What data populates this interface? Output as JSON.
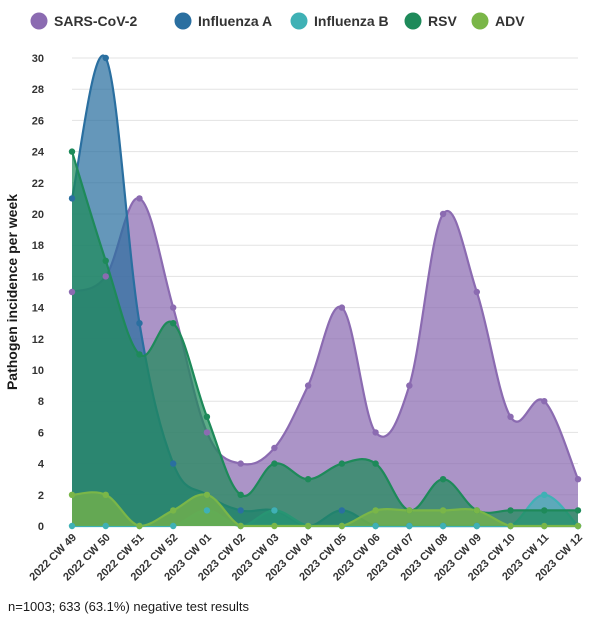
{
  "chart_data": {
    "type": "area",
    "ylabel": "Pathogen incidence per week",
    "ylim": [
      0,
      30
    ],
    "yticks": [
      0,
      2,
      4,
      6,
      8,
      10,
      12,
      14,
      16,
      18,
      20,
      22,
      24,
      26,
      28,
      30
    ],
    "grid": true,
    "legend_position": "top",
    "categories": [
      "2022 CW 49",
      "2022 CW 50",
      "2022 CW 51",
      "2022 CW 52",
      "2023 CW 01",
      "2023 CW 02",
      "2023 CW 03",
      "2023 CW 04",
      "2023 CW 05",
      "2023 CW 06",
      "2023 CW 07",
      "2023 CW 08",
      "2023 CW 09",
      "2023 CW 10",
      "2023 CW 11",
      "2023 CW 12"
    ],
    "series": [
      {
        "name": "SARS-CoV-2",
        "color": "#8b6bb1",
        "values": [
          15,
          16,
          21,
          14,
          6,
          4,
          5,
          9,
          14,
          6,
          9,
          20,
          15,
          7,
          8,
          3
        ]
      },
      {
        "name": "Influenza A",
        "color": "#2a6fa0",
        "values": [
          21,
          30,
          13,
          4,
          2,
          1,
          1,
          0,
          1,
          0,
          0,
          0,
          0,
          0,
          0,
          0
        ]
      },
      {
        "name": "Influenza B",
        "color": "#3fb1b5",
        "values": [
          0,
          0,
          0,
          0,
          1,
          0,
          1,
          0,
          0,
          0,
          0,
          0,
          0,
          0,
          2,
          0
        ]
      },
      {
        "name": "RSV",
        "color": "#1e8a5a",
        "values": [
          24,
          17,
          11,
          13,
          7,
          2,
          4,
          3,
          4,
          4,
          1,
          3,
          1,
          1,
          1,
          1
        ]
      },
      {
        "name": "ADV",
        "color": "#7ab648",
        "values": [
          2,
          2,
          0,
          1,
          2,
          0,
          0,
          0,
          0,
          1,
          1,
          1,
          1,
          0,
          0,
          0
        ]
      }
    ],
    "note": "n=1003; 633 (63.1%) negative test results"
  }
}
